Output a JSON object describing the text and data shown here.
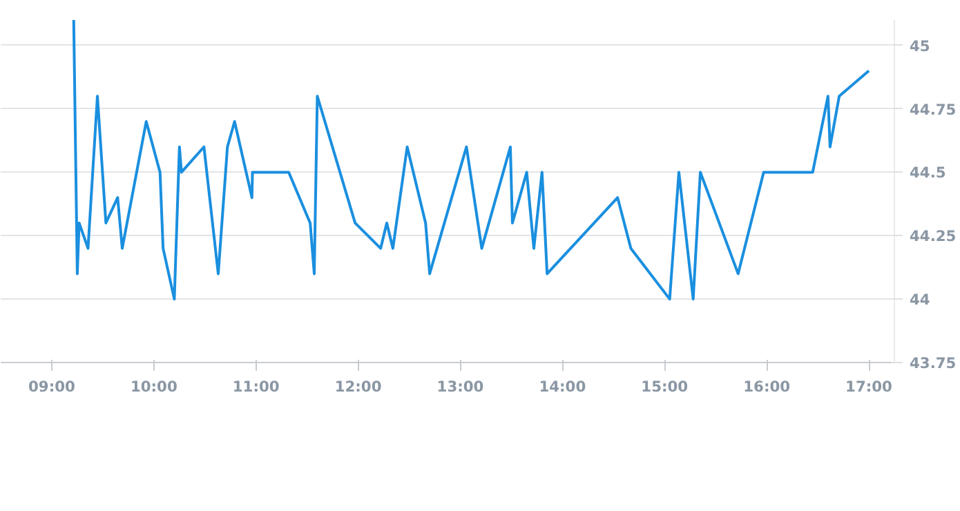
{
  "chart_data": {
    "type": "line",
    "x": [
      9.215,
      9.25,
      9.268,
      9.355,
      9.447,
      9.53,
      9.645,
      9.69,
      9.925,
      10.06,
      10.09,
      10.2,
      10.25,
      10.27,
      10.49,
      10.63,
      10.72,
      10.79,
      10.96,
      10.965,
      11.32,
      11.53,
      11.57,
      11.6,
      11.97,
      12.22,
      12.28,
      12.34,
      12.48,
      12.66,
      12.7,
      13.06,
      13.21,
      13.49,
      13.51,
      13.65,
      13.72,
      13.8,
      13.85,
      14.54,
      14.67,
      15.05,
      15.14,
      15.28,
      15.35,
      15.72,
      15.97,
      16.45,
      16.6,
      16.62,
      16.71,
      17.0
    ],
    "series": [
      {
        "color": "#1a8fdf",
        "values": [
          45.1,
          44.1,
          44.3,
          44.2,
          44.8,
          44.3,
          44.4,
          44.2,
          44.7,
          44.5,
          44.2,
          44.0,
          44.6,
          44.5,
          44.6,
          44.1,
          44.6,
          44.7,
          44.4,
          44.5,
          44.5,
          44.3,
          44.1,
          44.8,
          44.3,
          44.2,
          44.3,
          44.2,
          44.6,
          44.3,
          44.1,
          44.6,
          44.2,
          44.6,
          44.3,
          44.5,
          44.2,
          44.5,
          44.1,
          44.4,
          44.2,
          44.0,
          44.5,
          44.0,
          44.5,
          44.1,
          44.5,
          44.5,
          44.8,
          44.6,
          44.8,
          44.9
        ]
      }
    ],
    "xlim": [
      8.5,
      17.25
    ],
    "ylim": [
      43.75,
      45.1
    ],
    "xticks": [
      {
        "value": 9,
        "label": "09:00"
      },
      {
        "value": 10,
        "label": "10:00"
      },
      {
        "value": 11,
        "label": "11:00"
      },
      {
        "value": 12,
        "label": "12:00"
      },
      {
        "value": 13,
        "label": "13:00"
      },
      {
        "value": 14,
        "label": "14:00"
      },
      {
        "value": 15,
        "label": "15:00"
      },
      {
        "value": 16,
        "label": "16:00"
      },
      {
        "value": 17,
        "label": "17:00"
      }
    ],
    "yticks": [
      43.75,
      44,
      44.25,
      44.5,
      44.75,
      45
    ],
    "grid": "y",
    "marker": "none",
    "line_style": "solid"
  }
}
